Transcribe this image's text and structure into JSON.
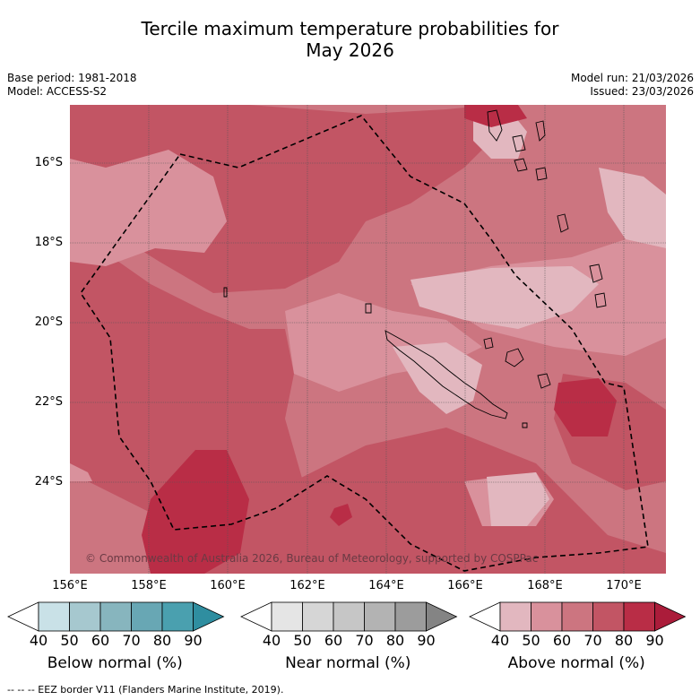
{
  "title_line1": "Tercile maximum temperature probabilities for",
  "title_line2": "May 2026",
  "base_period": "Base period: 1981-2018",
  "model": "Model: ACCESS-S2",
  "model_run": "Model run: 21/03/2026",
  "issued": "Issued: 23/03/2026",
  "copyright": "© Commonwealth of Australia 2026, Bureau of Meteorology, supported by COSPPac",
  "lat_labels": [
    "16°S",
    "18°S",
    "20°S",
    "22°S",
    "24°S"
  ],
  "lon_labels": [
    "156°E",
    "158°E",
    "160°E",
    "162°E",
    "164°E",
    "166°E",
    "168°E",
    "170°E"
  ],
  "colorbars": [
    {
      "title": "Below normal (%)",
      "ticks": [
        "40",
        "50",
        "60",
        "70",
        "80",
        "90"
      ],
      "colors": [
        "#ffffff",
        "#c9e1e7",
        "#a6c8cf",
        "#87b5be",
        "#68a7b4",
        "#4aa0af",
        "#2f8ea0"
      ]
    },
    {
      "title": "Near normal (%)",
      "ticks": [
        "40",
        "50",
        "60",
        "70",
        "80",
        "90"
      ],
      "colors": [
        "#ffffff",
        "#e5e5e5",
        "#d6d6d6",
        "#c6c6c6",
        "#b3b3b3",
        "#9c9c9c",
        "#848484"
      ]
    },
    {
      "title": "Above normal (%)",
      "ticks": [
        "40",
        "50",
        "60",
        "70",
        "80",
        "90"
      ],
      "colors": [
        "#ffffff",
        "#e2b7bf",
        "#d9919c",
        "#cc7580",
        "#c25564",
        "#b92d46",
        "#ab1c3a"
      ]
    }
  ],
  "footnote": "--  --  -- EEZ border V11 (Flanders Marine Institute, 2019).",
  "map_colors": {
    "p50": "#e2b7bf",
    "p60": "#d9919c",
    "p70": "#cc7580",
    "p80": "#c25564",
    "p90": "#b92d46"
  }
}
